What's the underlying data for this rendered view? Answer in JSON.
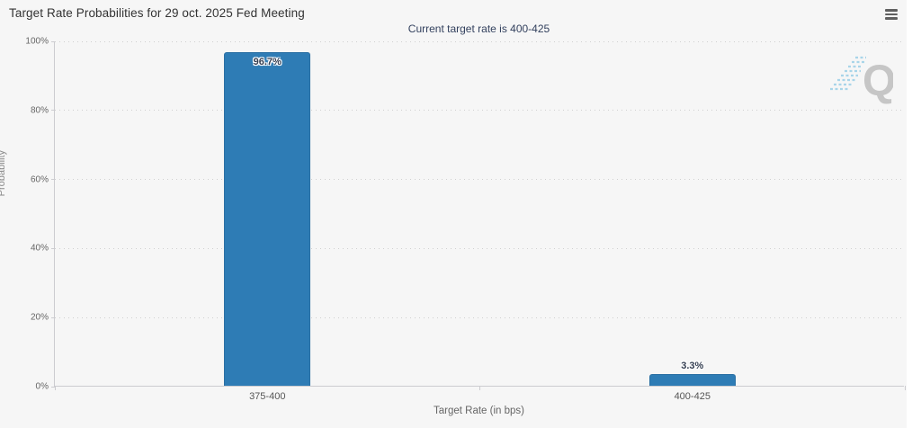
{
  "chart_data": {
    "type": "bar",
    "title": "Target Rate Probabilities for 29 oct. 2025 Fed Meeting",
    "subtitle": "Current target rate is 400-425",
    "categories": [
      "375-400",
      "400-425"
    ],
    "values": [
      96.7,
      3.3
    ],
    "value_labels": [
      "96.7%",
      "3.3%"
    ],
    "xlabel": "Target Rate (in bps)",
    "ylabel": "Probability",
    "ylim": [
      0,
      100
    ],
    "yticks": [
      0,
      20,
      40,
      60,
      80,
      100
    ],
    "ytick_labels": [
      "0%",
      "20%",
      "40%",
      "60%",
      "80%",
      "100%"
    ],
    "grid": "horizontal-dotted",
    "legend": "none",
    "bar_color": "#2e7cb5",
    "watermark_letter": "Q"
  },
  "toolbar": {
    "menu_icon": "hamburger-icon"
  },
  "colors": {
    "background": "#f6f6f6",
    "title_text": "#333333",
    "subtitle_text": "#33415e",
    "axis_text": "#666666",
    "axis_line": "#ccccd0",
    "gridline": "#cfcfcf",
    "bar": "#2e7cb5",
    "watermark_gray": "#c6c6c6",
    "watermark_blue": "#a9d5e9"
  }
}
